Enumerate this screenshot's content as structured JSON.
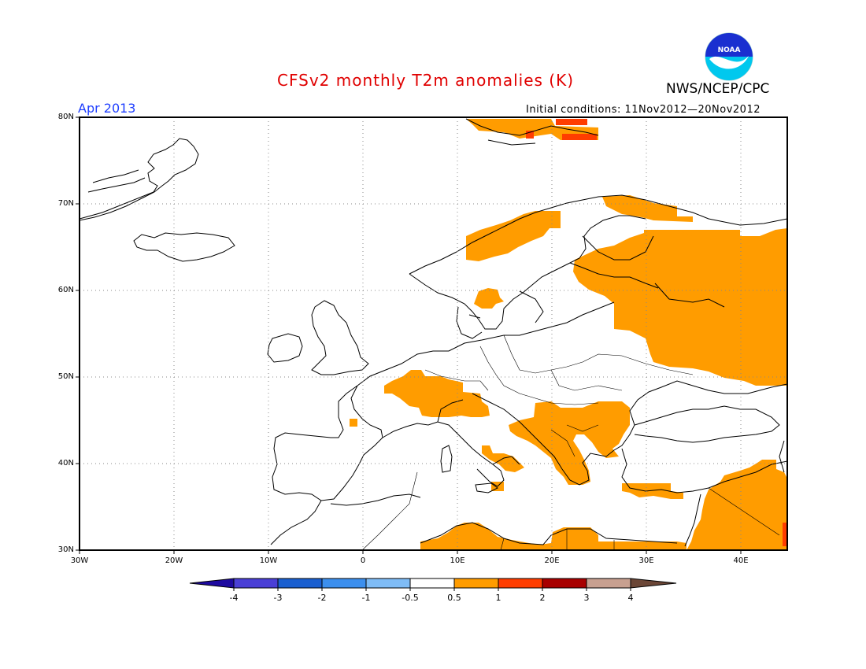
{
  "header": {
    "title": "CFSv2 monthly T2m anomalies (K)",
    "agency": "NWS/NCEP/CPC",
    "month": "Apr 2013",
    "initial_conditions": "Initial conditions: 11Nov2012—20Nov2012",
    "logo_text": "NOAA"
  },
  "map": {
    "region": "Europe",
    "lon_range": [
      -30,
      45
    ],
    "lat_range": [
      30,
      80
    ],
    "grid": "dotted, every 10 degrees",
    "lat_labels": [
      "80N",
      "70N",
      "60N",
      "50N",
      "40N",
      "30N"
    ],
    "lon_labels": [
      "30W",
      "20W",
      "10W",
      "0",
      "10E",
      "20E",
      "30E",
      "40E"
    ],
    "anomaly_regions": [
      {
        "area": "Svalbard",
        "range": "0.5 to 1",
        "peak": "1 to 2"
      },
      {
        "area": "Northern Scandinavia coast",
        "range": "0.5 to 1"
      },
      {
        "area": "Western Russia and Finland",
        "range": "0.5 to 1"
      },
      {
        "area": "Southern Sweden",
        "range": "0.5 to 1"
      },
      {
        "area": "France, Switzerland, Northern Italy",
        "range": "0.5 to 1"
      },
      {
        "area": "Balkans and Greece",
        "range": "0.5 to 1"
      },
      {
        "area": "Turkey and Middle East",
        "range": "0.5 to 1",
        "peak": "1 to 2"
      },
      {
        "area": "North Africa coast",
        "range": "0.5 to 1"
      }
    ]
  },
  "colorbar": {
    "labels": [
      "-4",
      "-3",
      "-2",
      "-1",
      "-0.5",
      "0.5",
      "1",
      "2",
      "3",
      "4"
    ],
    "colors": [
      "#1e0aa0",
      "#4a3fd6",
      "#1a5fd0",
      "#3c8fee",
      "#7fbcf6",
      "#ffffff",
      "#ff9c00",
      "#ff3d00",
      "#a80000",
      "#c8a090",
      "#6b4636"
    ]
  }
}
